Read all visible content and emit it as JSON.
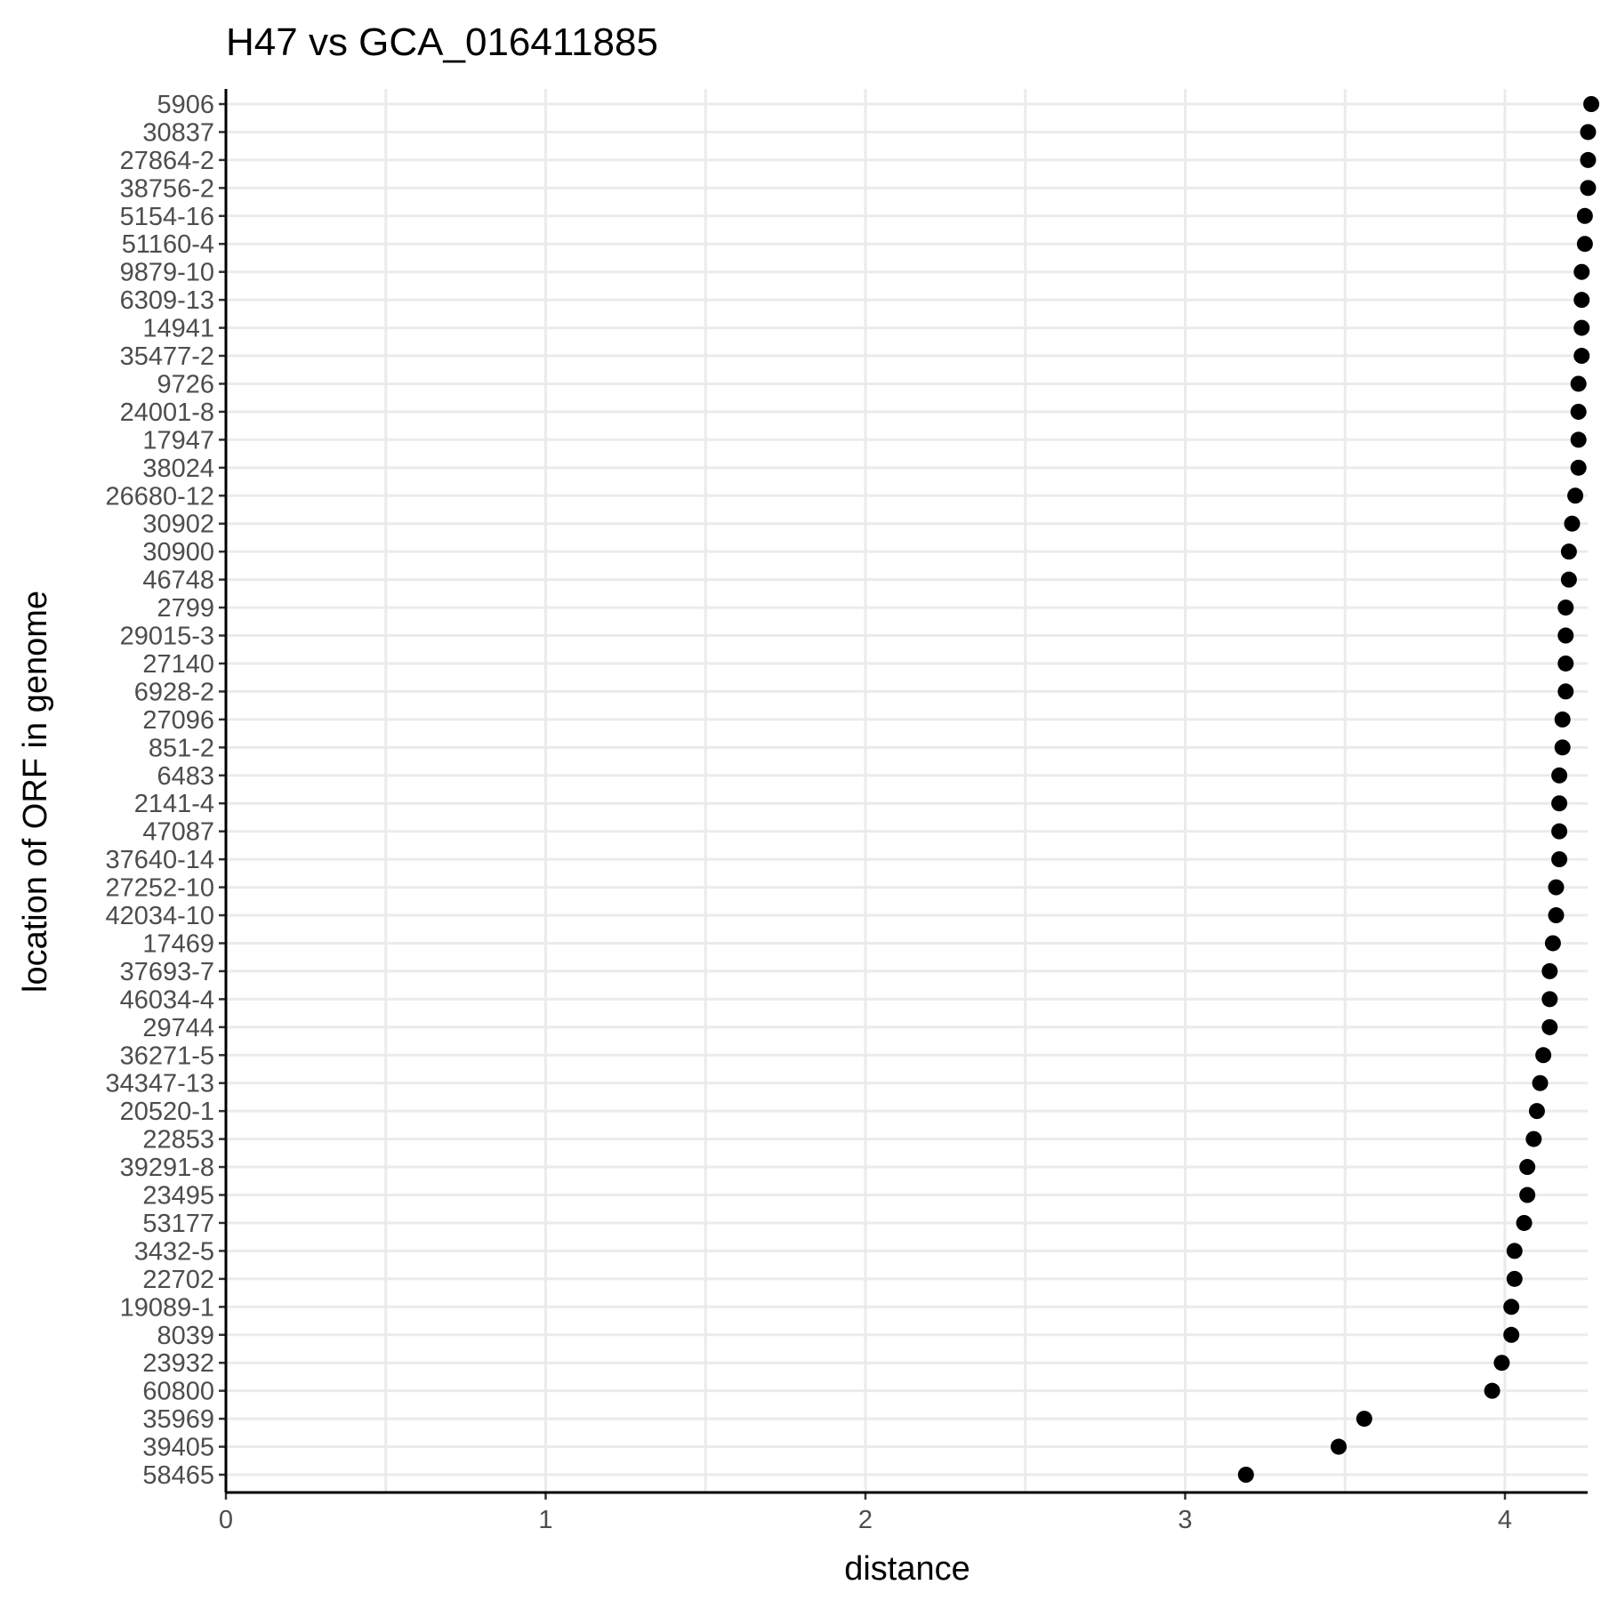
{
  "chart_data": {
    "type": "scatter",
    "title": "H47 vs GCA_016411885",
    "xlabel": "distance",
    "ylabel": "location of ORF in genome",
    "xlim": [
      0,
      4.27
    ],
    "x_ticks": [
      0,
      1,
      2,
      3,
      4
    ],
    "grid": true,
    "categories": [
      "5906",
      "30837",
      "27864-2",
      "38756-2",
      "5154-16",
      "51160-4",
      "9879-10",
      "6309-13",
      "14941",
      "35477-2",
      "9726",
      "24001-8",
      "17947",
      "38024",
      "26680-12",
      "30902",
      "30900",
      "46748",
      "2799",
      "29015-3",
      "27140",
      "6928-2",
      "27096",
      "851-2",
      "6483",
      "2141-4",
      "47087",
      "37640-14",
      "27252-10",
      "42034-10",
      "17469",
      "37693-7",
      "46034-4",
      "29744",
      "36271-5",
      "34347-13",
      "20520-1",
      "22853",
      "39291-8",
      "23495",
      "53177",
      "3432-5",
      "22702",
      "19089-1",
      "8039",
      "23932",
      "60800",
      "35969",
      "39405",
      "58465"
    ],
    "values": [
      4.27,
      4.26,
      4.26,
      4.26,
      4.25,
      4.25,
      4.24,
      4.24,
      4.24,
      4.24,
      4.23,
      4.23,
      4.23,
      4.23,
      4.22,
      4.21,
      4.2,
      4.2,
      4.19,
      4.19,
      4.19,
      4.19,
      4.18,
      4.18,
      4.17,
      4.17,
      4.17,
      4.17,
      4.16,
      4.16,
      4.15,
      4.14,
      4.14,
      4.14,
      4.12,
      4.11,
      4.1,
      4.09,
      4.07,
      4.07,
      4.06,
      4.03,
      4.03,
      4.02,
      4.02,
      3.99,
      3.96,
      3.56,
      3.48,
      3.19
    ]
  }
}
